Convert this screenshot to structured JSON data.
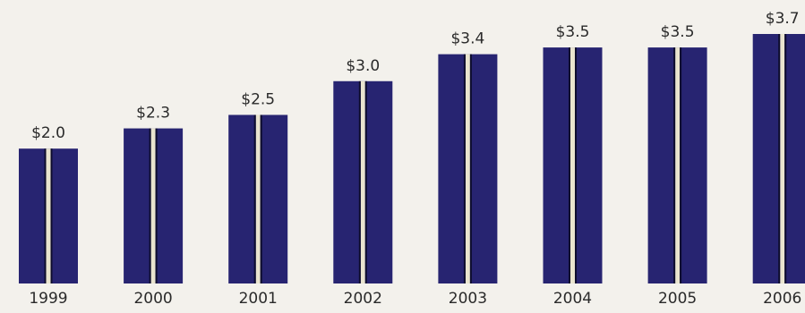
{
  "chart_data": {
    "type": "bar",
    "categories": [
      "1999",
      "2000",
      "2001",
      "2002",
      "2003",
      "2004",
      "2005",
      "2006"
    ],
    "values": [
      2.0,
      2.3,
      2.5,
      3.0,
      3.4,
      3.5,
      3.5,
      3.7
    ],
    "value_labels": [
      "$2.0",
      "$2.3",
      "$2.5",
      "$3.0",
      "$3.4",
      "$3.5",
      "$3.5",
      "$3.7"
    ],
    "ylim": [
      0,
      3.7
    ],
    "grid": false,
    "legend": "none",
    "colors": {
      "bar": "#272471",
      "bar_stripe": "#e9e4cf",
      "text": "#2a2a2a",
      "background": "#f3f1ec"
    }
  }
}
